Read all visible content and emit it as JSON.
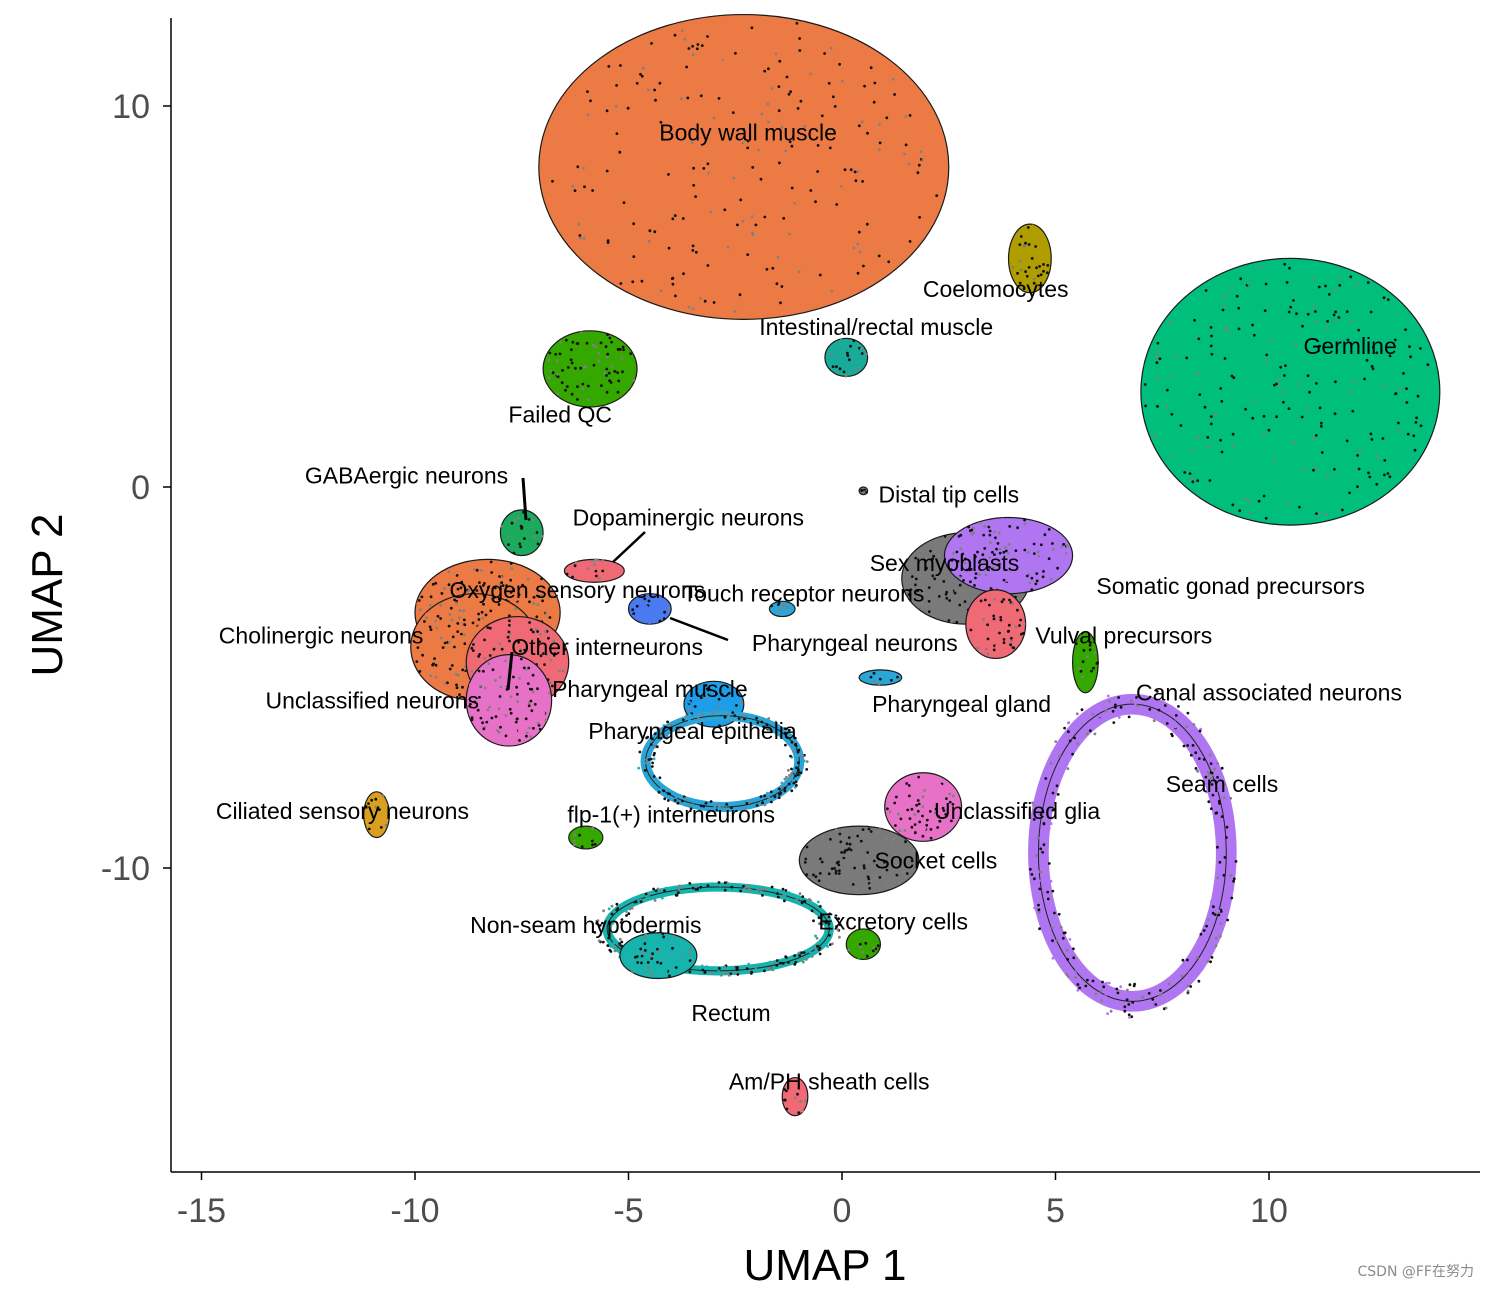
{
  "chart_data": {
    "type": "scatter",
    "title": "",
    "xlabel": "UMAP 1",
    "ylabel": "UMAP 2",
    "xlim": [
      -15.7,
      15
    ],
    "ylim": [
      -18.2,
      12.3
    ],
    "x_ticks": [
      -15,
      -10,
      -5,
      0,
      5,
      10
    ],
    "y_ticks": [
      -10,
      0,
      10
    ],
    "grid": false,
    "legend": "none",
    "clusters": [
      {
        "name": "Body wall muscle",
        "label": "Body wall muscle",
        "color": "#ec7a45",
        "shape": "blob",
        "cx": -2.3,
        "cy": 8.4,
        "rx": 4.8,
        "ry": 4.0,
        "label_x": -2.2,
        "label_y": 9.3
      },
      {
        "name": "Coelomocytes",
        "label": "Coelomocytes",
        "color": "#b09d00",
        "shape": "blob",
        "cx": 4.4,
        "cy": 6.0,
        "rx": 0.5,
        "ry": 0.9,
        "label_x": 3.6,
        "label_y": 5.2
      },
      {
        "name": "Intestinal/rectal muscle",
        "label": "Intestinal/rectal muscle",
        "color": "#1aaa9a",
        "shape": "blob",
        "cx": 0.1,
        "cy": 3.4,
        "rx": 0.5,
        "ry": 0.5,
        "label_x": 0.8,
        "label_y": 4.2
      },
      {
        "name": "Germline",
        "label": "Germline",
        "color": "#00bf7d",
        "shape": "blob",
        "cx": 10.5,
        "cy": 2.5,
        "rx": 3.5,
        "ry": 3.5,
        "label_x": 11.9,
        "label_y": 3.7
      },
      {
        "name": "Failed QC",
        "label": "Failed QC",
        "color": "#35a800",
        "shape": "blob",
        "cx": -5.9,
        "cy": 3.1,
        "rx": 1.1,
        "ry": 1.0,
        "label_x": -6.6,
        "label_y": 1.9
      },
      {
        "name": "Distal tip cells",
        "label": "Distal tip cells",
        "color": "#7a7a7a",
        "shape": "blob",
        "cx": 0.5,
        "cy": -0.1,
        "rx": 0.1,
        "ry": 0.1,
        "label_x": 2.5,
        "label_y": -0.2
      },
      {
        "name": "GABAergic neurons",
        "label": "GABAergic neurons",
        "color": "#1cab5c",
        "shape": "blob",
        "cx": -7.5,
        "cy": -1.2,
        "rx": 0.5,
        "ry": 0.6,
        "label_x": -10.2,
        "label_y": 0.3
      },
      {
        "name": "Dopaminergic neurons",
        "label": "Dopaminergic neurons",
        "color": "#f06a75",
        "shape": "blob",
        "cx": -5.8,
        "cy": -2.2,
        "rx": 0.7,
        "ry": 0.3,
        "label_x": -3.6,
        "label_y": -0.8
      },
      {
        "name": "Sex myoblasts",
        "label": "Sex myoblasts",
        "color": "#7a7a7a",
        "shape": "blob",
        "cx": 2.9,
        "cy": -2.4,
        "rx": 1.5,
        "ry": 1.2,
        "label_x": 2.4,
        "label_y": -2.0
      },
      {
        "name": "Somatic gonad precursors",
        "label": "Somatic gonad precursors",
        "color": "#b076f2",
        "shape": "blob",
        "cx": 3.9,
        "cy": -1.8,
        "rx": 1.5,
        "ry": 1.0,
        "label_x": 9.1,
        "label_y": -2.6
      },
      {
        "name": "Oxygen sensory neurons",
        "label": "Oxygen sensory neurons",
        "color": "#ec7a45",
        "shape": "blob",
        "cx": -8.3,
        "cy": -3.3,
        "rx": 1.7,
        "ry": 1.4,
        "label_x": -6.2,
        "label_y": -2.7
      },
      {
        "name": "Touch receptor neurons",
        "label": "Touch receptor neurons",
        "color": "#4a7af0",
        "shape": "blob",
        "cx": -4.5,
        "cy": -3.2,
        "rx": 0.5,
        "ry": 0.4,
        "label_x": -0.9,
        "label_y": -2.8
      },
      {
        "name": "Cholinergic neurons",
        "label": "Cholinergic neurons",
        "color": "#ec7a45",
        "shape": "blob",
        "cx": -8.6,
        "cy": -4.2,
        "rx": 1.5,
        "ry": 1.4,
        "label_x": -12.2,
        "label_y": -3.9
      },
      {
        "name": "Vulval precursors",
        "label": "Vulval precursors",
        "color": "#f06a75",
        "shape": "blob",
        "cx": 3.6,
        "cy": -3.6,
        "rx": 0.7,
        "ry": 0.9,
        "label_x": 6.6,
        "label_y": -3.9
      },
      {
        "name": "Other interneurons",
        "label": "Other interneurons",
        "color": "#f06a75",
        "shape": "blob",
        "cx": -7.6,
        "cy": -4.6,
        "rx": 1.2,
        "ry": 1.2,
        "label_x": -5.5,
        "label_y": -4.2
      },
      {
        "name": "Pharyngeal neurons",
        "label": "Pharyngeal neurons",
        "color": "#2aa5d6",
        "shape": "blob",
        "cx": -1.4,
        "cy": -3.2,
        "rx": 0.3,
        "ry": 0.2,
        "label_x": 0.3,
        "label_y": -4.1
      },
      {
        "name": "Canal associated neurons",
        "label": "Canal associated neurons",
        "color": "#35a800",
        "shape": "blob",
        "cx": 5.7,
        "cy": -4.6,
        "rx": 0.3,
        "ry": 0.8,
        "label_x": 10.0,
        "label_y": -5.4
      },
      {
        "name": "Unclassified neurons",
        "label": "Unclassified neurons",
        "color": "#e871c8",
        "shape": "blob",
        "cx": -7.8,
        "cy": -5.6,
        "rx": 1.0,
        "ry": 1.2,
        "label_x": -11.0,
        "label_y": -5.6
      },
      {
        "name": "Pharyngeal muscle",
        "label": "Pharyngeal muscle",
        "color": "#1e9ee8",
        "shape": "blob",
        "cx": -3.0,
        "cy": -5.7,
        "rx": 0.7,
        "ry": 0.6,
        "label_x": -4.5,
        "label_y": -5.3
      },
      {
        "name": "Pharyngeal gland",
        "label": "Pharyngeal gland",
        "color": "#2aa5d6",
        "shape": "blob",
        "cx": 0.9,
        "cy": -5.0,
        "rx": 0.5,
        "ry": 0.2,
        "label_x": 2.8,
        "label_y": -5.7
      },
      {
        "name": "Pharyngeal epithelia",
        "label": "Pharyngeal epithelia",
        "color": "#2aa5d6",
        "shape": "ring",
        "cx": -2.8,
        "cy": -7.2,
        "rx": 1.8,
        "ry": 1.2,
        "label_x": -3.5,
        "label_y": -6.4
      },
      {
        "name": "Seam cells",
        "label": "Seam cells",
        "color": "#b076f2",
        "shape": "ring",
        "cx": 6.8,
        "cy": -9.6,
        "rx": 2.2,
        "ry": 3.9,
        "label_x": 8.9,
        "label_y": -7.8
      },
      {
        "name": "Ciliated sensory neurons",
        "label": "Ciliated sensory neurons",
        "color": "#d9a020",
        "shape": "blob",
        "cx": -10.9,
        "cy": -8.6,
        "rx": 0.3,
        "ry": 0.6,
        "label_x": -11.7,
        "label_y": -8.5
      },
      {
        "name": "flp-1(+) interneurons",
        "label": "flp-1(+) interneurons",
        "color": "#35a800",
        "shape": "blob",
        "cx": -6.0,
        "cy": -9.2,
        "rx": 0.4,
        "ry": 0.3,
        "label_x": -4.0,
        "label_y": -8.6
      },
      {
        "name": "Unclassified glia",
        "label": "Unclassified glia",
        "color": "#e871c8",
        "shape": "blob",
        "cx": 1.9,
        "cy": -8.4,
        "rx": 0.9,
        "ry": 0.9,
        "label_x": 4.1,
        "label_y": -8.5
      },
      {
        "name": "Socket cells",
        "label": "Socket cells",
        "color": "#7a7a7a",
        "shape": "blob",
        "cx": 0.4,
        "cy": -9.8,
        "rx": 1.4,
        "ry": 0.9,
        "label_x": 2.2,
        "label_y": -9.8
      },
      {
        "name": "Excretory cells",
        "label": "Excretory cells",
        "color": "#35a800",
        "shape": "blob",
        "cx": 0.5,
        "cy": -12.0,
        "rx": 0.4,
        "ry": 0.4,
        "label_x": 1.2,
        "label_y": -11.4
      },
      {
        "name": "Non-seam hypodermis",
        "label": "Non-seam hypodermis",
        "color": "#17b3ad",
        "shape": "ring",
        "cx": -2.9,
        "cy": -11.6,
        "rx": 2.6,
        "ry": 1.1,
        "label_x": -6.0,
        "label_y": -11.5
      },
      {
        "name": "Rectum",
        "label": "Rectum",
        "color": "#17b3ad",
        "shape": "blob",
        "cx": -4.3,
        "cy": -12.3,
        "rx": 0.9,
        "ry": 0.6,
        "label_x": -2.6,
        "label_y": -13.8
      },
      {
        "name": "Am/PH sheath cells",
        "label": "Am/PH sheath cells",
        "color": "#f06a75",
        "shape": "blob",
        "cx": -1.1,
        "cy": -16.0,
        "rx": 0.3,
        "ry": 0.5,
        "label_x": -0.3,
        "label_y": -15.6
      }
    ]
  },
  "watermark": "CSDN @FF在努力"
}
